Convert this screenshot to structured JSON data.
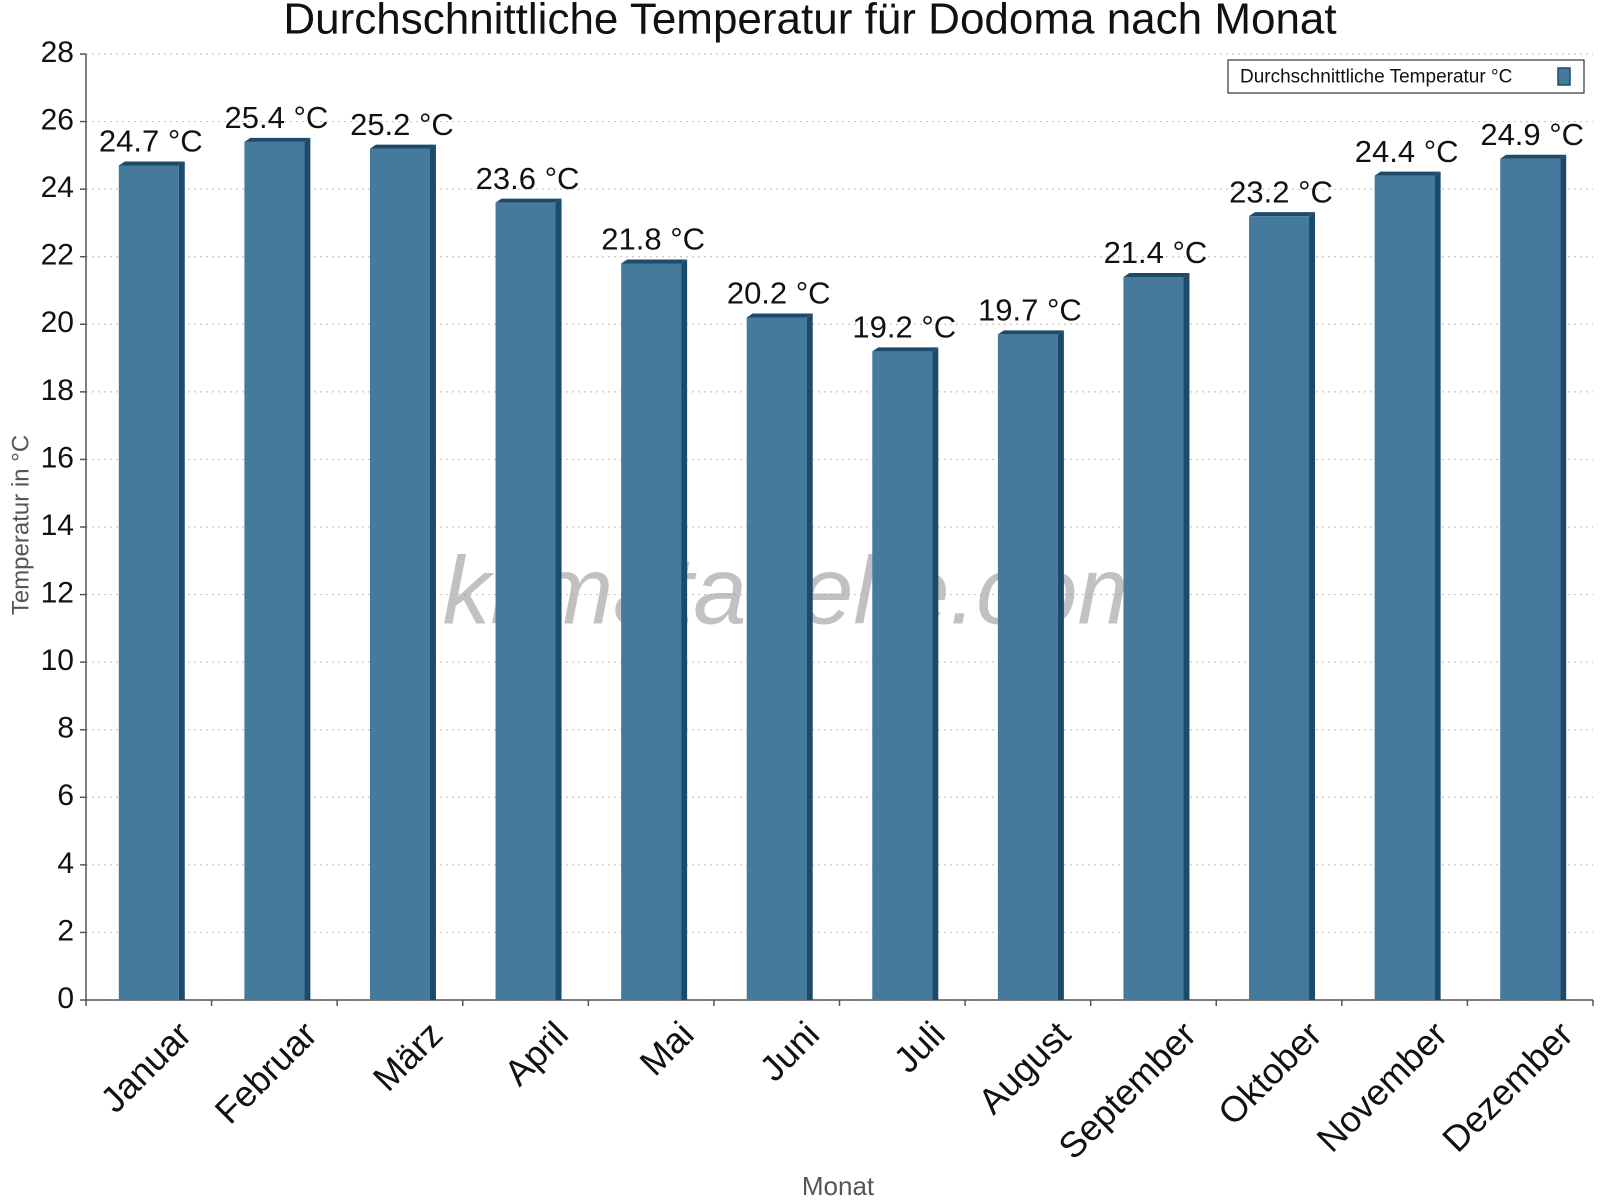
{
  "chart_data": {
    "type": "bar",
    "title": "Durchschnittliche Temperatur für Dodoma nach Monat",
    "xlabel": "Monat",
    "ylabel": "Temperatur in °C",
    "watermark": "klimatabelle.com",
    "categories": [
      "Januar",
      "Februar",
      "März",
      "April",
      "Mai",
      "Juni",
      "Juli",
      "August",
      "September",
      "Oktober",
      "November",
      "Dezember"
    ],
    "series": [
      {
        "name": "Durchschnittliche Temperatur °C",
        "color": "#467a9c",
        "values": [
          24.7,
          25.4,
          25.2,
          23.6,
          21.8,
          20.2,
          19.2,
          19.7,
          21.4,
          23.2,
          24.4,
          24.9
        ],
        "value_labels": [
          "24.7 °C",
          "25.4 °C",
          "25.2 °C",
          "23.6 °C",
          "21.8 °C",
          "20.2 °C",
          "19.2 °C",
          "19.7 °C",
          "21.4 °C",
          "23.2 °C",
          "24.4 °C",
          "24.9 °C"
        ]
      }
    ],
    "ylim": [
      0,
      28
    ],
    "yticks": [
      0,
      2,
      4,
      6,
      8,
      10,
      12,
      14,
      16,
      18,
      20,
      22,
      24,
      26,
      28
    ],
    "grid": true,
    "legend": "upper right"
  }
}
